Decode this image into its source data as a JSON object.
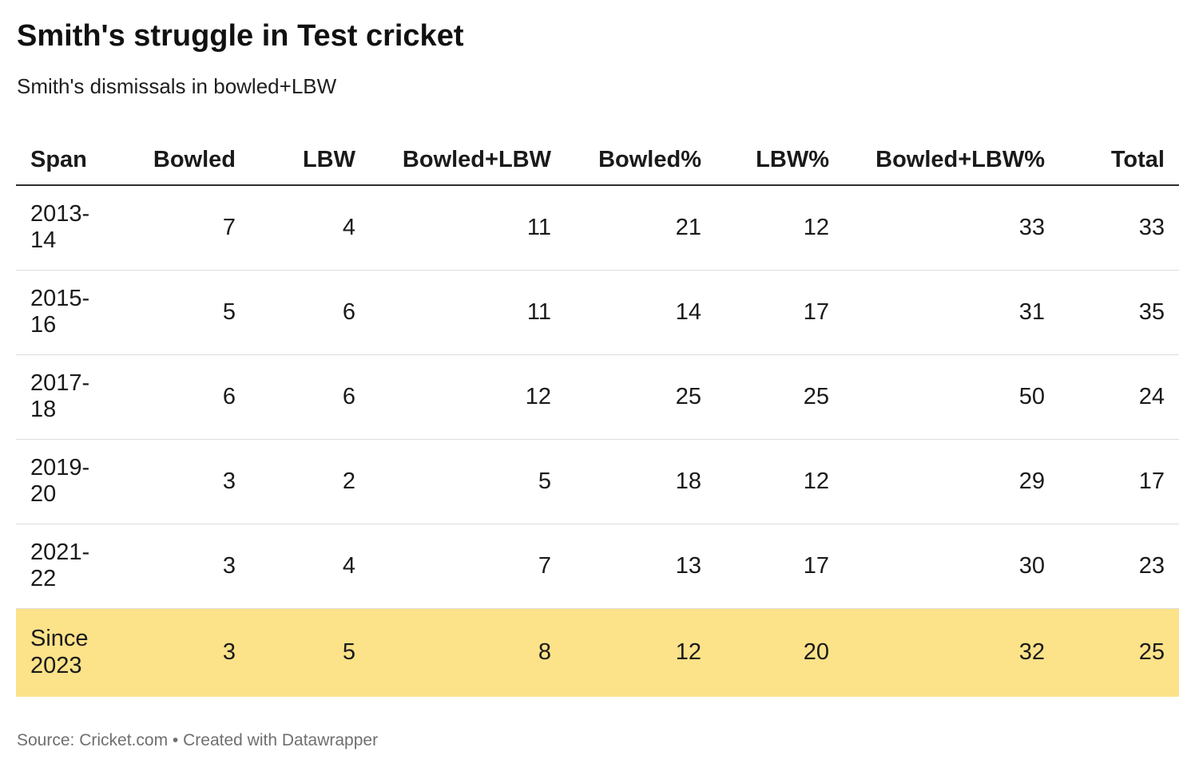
{
  "header": {
    "title": "Smith's struggle in Test cricket",
    "subtitle": "Smith's dismissals in bowled+LBW"
  },
  "chart_data": {
    "type": "table",
    "columns": [
      "Span",
      "Bowled",
      "LBW",
      "Bowled+LBW",
      "Bowled%",
      "LBW%",
      "Bowled+LBW%",
      "Total"
    ],
    "rows": [
      {
        "span": "2013-14",
        "values": [
          7,
          4,
          11,
          21,
          12,
          33,
          33
        ],
        "highlight": false
      },
      {
        "span": "2015-16",
        "values": [
          5,
          6,
          11,
          14,
          17,
          31,
          35
        ],
        "highlight": false
      },
      {
        "span": "2017-18",
        "values": [
          6,
          6,
          12,
          25,
          25,
          50,
          24
        ],
        "highlight": false
      },
      {
        "span": "2019-20",
        "values": [
          3,
          2,
          5,
          18,
          12,
          29,
          17
        ],
        "highlight": false
      },
      {
        "span": "2021-22",
        "values": [
          3,
          4,
          7,
          13,
          17,
          30,
          23
        ],
        "highlight": false
      },
      {
        "span": "Since 2023",
        "values": [
          3,
          5,
          8,
          12,
          20,
          32,
          25
        ],
        "highlight": true
      }
    ],
    "highlight_color": "#FCE289",
    "layout": {
      "first_column_align": "left",
      "numeric_align": "right",
      "header_border_color": "#2e2e2e",
      "row_border_color": "#dddddd",
      "grid": "horizontal-only",
      "legend": "none"
    }
  },
  "footer": {
    "source_label": "Source:",
    "source_name": "Cricket.com",
    "separator": "•",
    "attribution": "Created with Datawrapper"
  }
}
